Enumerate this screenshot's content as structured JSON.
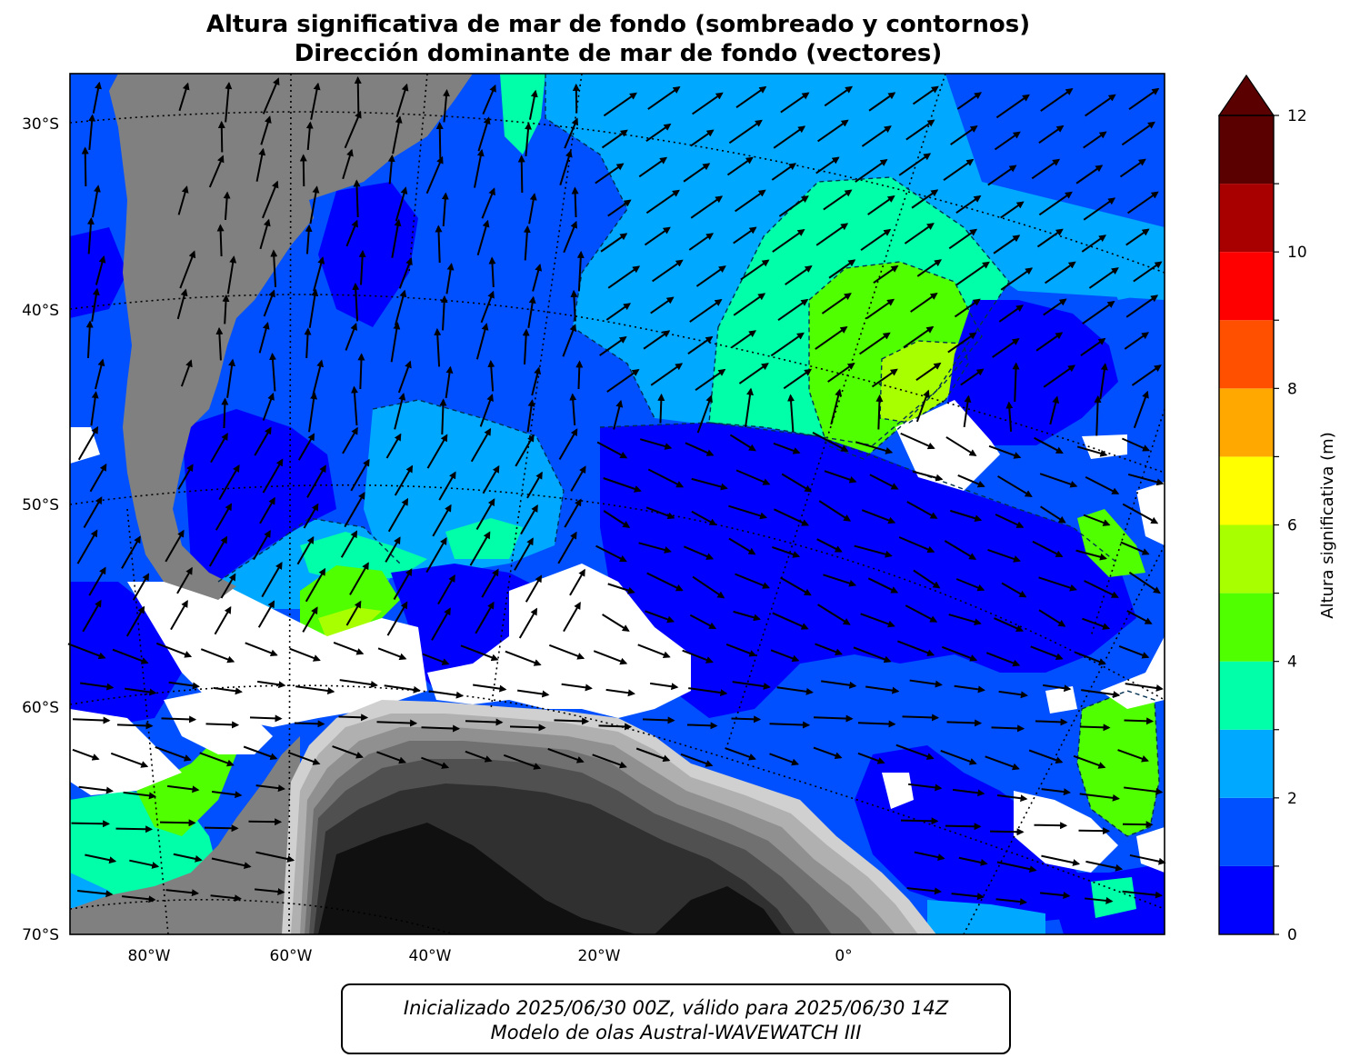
{
  "title": {
    "line1": "Altura significativa de mar de fondo (sombreado y contornos)",
    "line2": "Dirección dominante de mar de fondo (vectores)"
  },
  "map": {
    "lat_labels": [
      "30°S",
      "40°S",
      "50°S",
      "60°S",
      "70°S"
    ],
    "lon_labels": [
      "80°W",
      "60°W",
      "40°W",
      "20°W",
      "0°"
    ],
    "land_color": "#808080",
    "ice_palette": [
      "#101010",
      "#303030",
      "#505050",
      "#707070",
      "#909090",
      "#b0b0b0",
      "#d0d0d0"
    ]
  },
  "colorbar": {
    "label": "Altura significativa (m)",
    "ticks": [
      "0",
      "2",
      "4",
      "6",
      "8",
      "10",
      "12"
    ],
    "levels": [
      0,
      1,
      2,
      3,
      4,
      5,
      6,
      7,
      8,
      9,
      10,
      11,
      12
    ],
    "colors": [
      "#0000ff",
      "#0050ff",
      "#00a8ff",
      "#00ffa8",
      "#50ff00",
      "#a8ff00",
      "#ffff00",
      "#ffa800",
      "#ff5000",
      "#ff0000",
      "#a80000",
      "#5a0000"
    ],
    "extend_color": "#5a0000"
  },
  "footer": {
    "line1": "Inicializado 2025/06/30 00Z, válido para 2025/06/30 14Z",
    "line2": "Modelo de olas Austral-WAVEWATCH III"
  }
}
